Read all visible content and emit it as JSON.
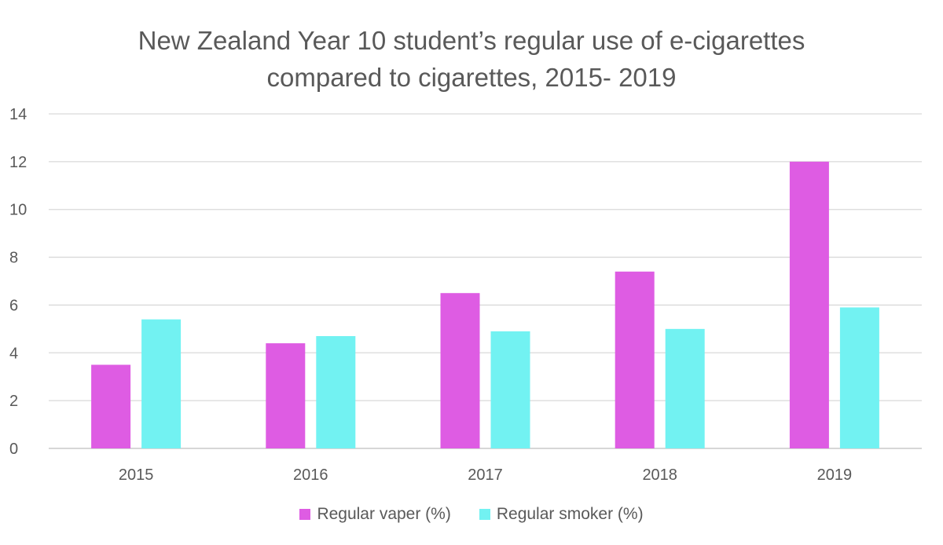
{
  "chart_data": {
    "type": "bar",
    "title_lines": [
      "New Zealand Year 10 student’s regular use of e-cigarettes",
      "compared to cigarettes, 2015- 2019"
    ],
    "categories": [
      "2015",
      "2016",
      "2017",
      "2018",
      "2019"
    ],
    "series": [
      {
        "name": "Regular vaper (%)",
        "color": "#de5ce3",
        "values": [
          3.5,
          4.4,
          6.5,
          7.4,
          12.0
        ]
      },
      {
        "name": "Regular smoker (%)",
        "color": "#72f2f2",
        "values": [
          5.4,
          4.7,
          4.9,
          5.0,
          5.9
        ]
      }
    ],
    "ylim": [
      0,
      14
    ],
    "yticks": [
      "0",
      "2",
      "4",
      "6",
      "8",
      "10",
      "12",
      "14"
    ],
    "grid": true,
    "legend_position": "bottom"
  }
}
